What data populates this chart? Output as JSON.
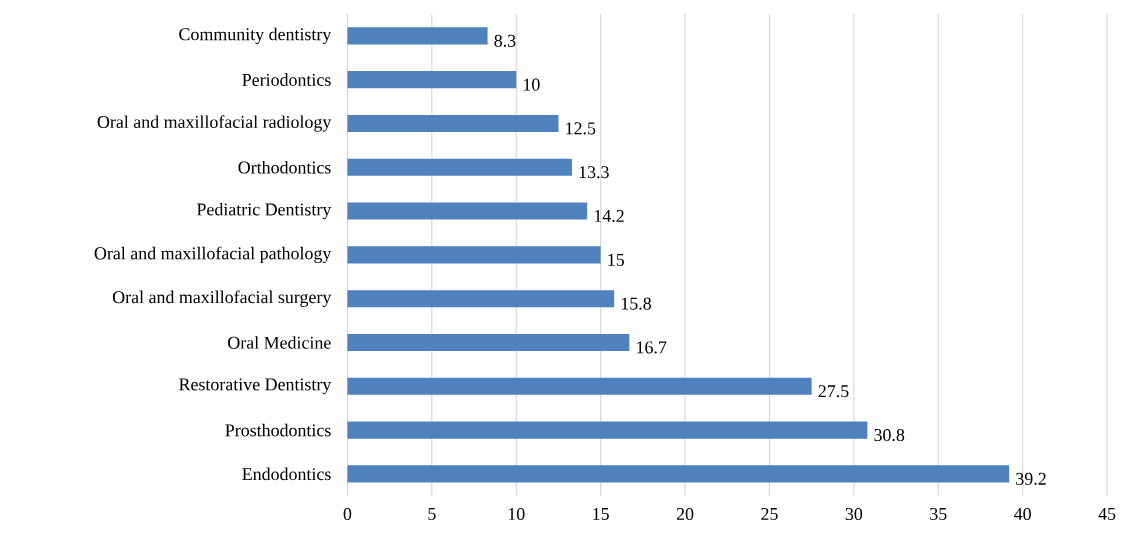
{
  "chart_data": {
    "type": "bar",
    "orientation": "horizontal",
    "categories": [
      "Community dentistry",
      "Periodontics",
      "Oral and maxillofacial radiology",
      "Orthodontics",
      "Pediatric Dentistry",
      "Oral and maxillofacial pathology",
      "Oral and maxillofacial surgery",
      "Oral Medicine",
      "Restorative Dentistry",
      "Prosthodontics",
      "Endodontics"
    ],
    "values": [
      8.3,
      10,
      12.5,
      13.3,
      14.2,
      15,
      15.8,
      16.7,
      27.5,
      30.8,
      39.2
    ],
    "color": "#4f81bd",
    "xlim": [
      0,
      45
    ],
    "xticks": [
      0,
      5,
      10,
      15,
      20,
      25,
      30,
      35,
      40,
      45
    ],
    "grid": "x",
    "data_labels": true
  }
}
